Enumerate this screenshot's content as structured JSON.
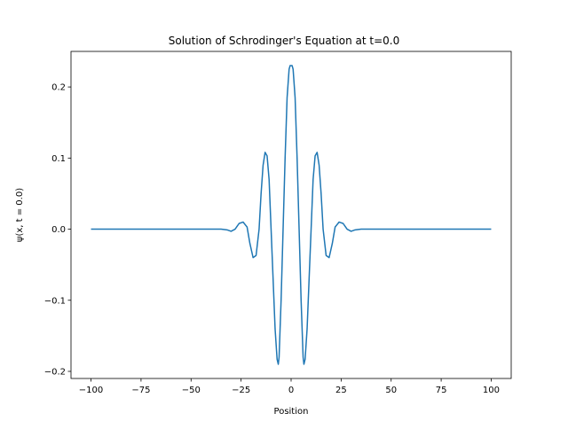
{
  "chart_data": {
    "type": "line",
    "title": "Solution of Schrodinger's Equation at t=0.0",
    "xlabel": "Position",
    "ylabel": "ψ(x, t = 0.0)",
    "xlim": [
      -110,
      110
    ],
    "ylim": [
      -0.21,
      0.25
    ],
    "xticks": [
      -100,
      -75,
      -50,
      -25,
      0,
      25,
      50,
      75,
      100
    ],
    "xtick_labels": [
      "−100",
      "−75",
      "−50",
      "−25",
      "0",
      "25",
      "50",
      "75",
      "100"
    ],
    "yticks": [
      -0.2,
      -0.1,
      0.0,
      0.1,
      0.2
    ],
    "ytick_labels": [
      "−0.2",
      "−0.1",
      "0.0",
      "0.1",
      "0.2"
    ],
    "grid": false,
    "line_color": "#1f77b4",
    "series": [
      {
        "x": [
          -100,
          -40,
          -35,
          -32,
          -30,
          -28,
          -26,
          -24,
          -22,
          -20.6,
          -19,
          -17.5,
          -16,
          -15,
          -14,
          -13,
          -12,
          -11,
          -10,
          -9,
          -8,
          -7,
          -6.4,
          -6,
          -5,
          -4,
          -3,
          -2,
          -1,
          -0.5,
          0,
          0.5,
          1,
          2,
          3,
          4,
          5,
          6,
          6.4,
          7,
          8,
          9,
          10,
          11,
          12,
          13,
          14,
          15,
          16,
          17.5,
          19,
          20.6,
          22,
          24,
          26,
          28,
          30,
          32,
          35,
          40,
          100
        ],
        "y": [
          0.0,
          0.0,
          0.0,
          -0.001,
          -0.003,
          0.0,
          0.008,
          0.01,
          0.003,
          -0.02,
          -0.04,
          -0.037,
          0.0,
          0.05,
          0.09,
          0.108,
          0.103,
          0.07,
          0.0,
          -0.07,
          -0.14,
          -0.183,
          -0.19,
          -0.18,
          -0.1,
          0.0,
          0.1,
          0.185,
          0.225,
          0.23,
          0.23,
          0.23,
          0.225,
          0.185,
          0.1,
          0.0,
          -0.1,
          -0.18,
          -0.19,
          -0.183,
          -0.14,
          -0.07,
          0.0,
          0.07,
          0.103,
          0.108,
          0.09,
          0.05,
          0.0,
          -0.037,
          -0.04,
          -0.02,
          0.003,
          0.01,
          0.008,
          0.0,
          -0.003,
          -0.001,
          0.0,
          0.0,
          0.0
        ]
      }
    ]
  }
}
